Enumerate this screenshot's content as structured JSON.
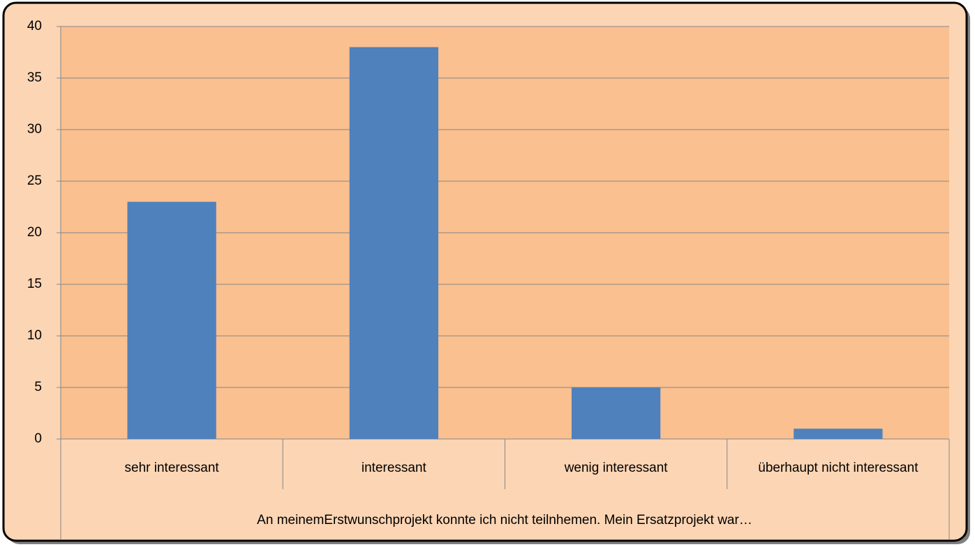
{
  "chart_data": {
    "type": "bar",
    "categories": [
      "sehr interessant",
      "interessant",
      "wenig interessant",
      "überhaupt nicht interessant"
    ],
    "values": [
      23,
      38,
      5,
      1
    ],
    "color": "#4f81bd",
    "xlabel": "An meinemErstwunschprojekt konnte ich nicht teilnhemen. Mein Ersatzprojekt war…",
    "ylim": [
      0,
      40
    ],
    "yticks": [
      0,
      5,
      10,
      15,
      20,
      25,
      30,
      35,
      40
    ],
    "grid": true
  }
}
